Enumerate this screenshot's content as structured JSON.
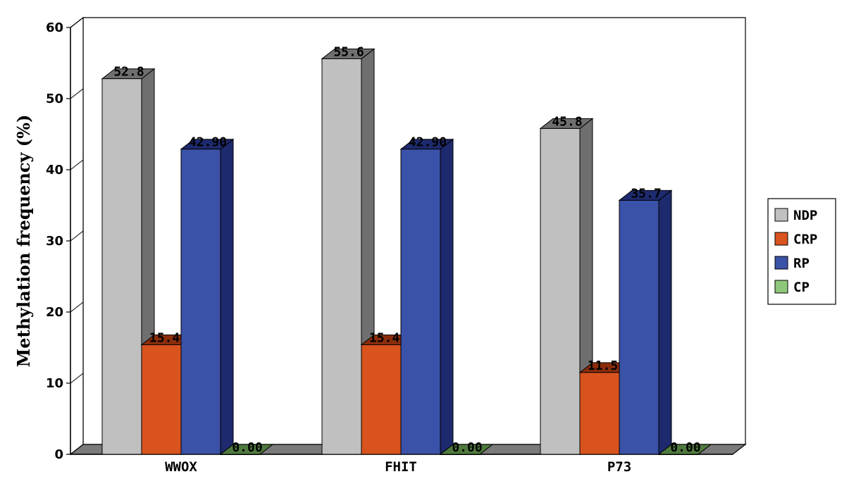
{
  "chart_data": {
    "type": "bar",
    "title": "",
    "xlabel": "",
    "ylabel": "Methylation frequency (%)",
    "ylim": [
      0,
      60
    ],
    "yticks": [
      0,
      10,
      20,
      30,
      40,
      50,
      60
    ],
    "categories": [
      "WWOX",
      "FHIT",
      "P73"
    ],
    "series": [
      {
        "name": "NDP",
        "values": [
          52.8,
          55.6,
          45.8
        ],
        "labels": [
          "52.8",
          "55.6",
          "45.8"
        ],
        "color": "#c0c0c0",
        "side_color": "#6f6f6f"
      },
      {
        "name": "CRP",
        "values": [
          15.4,
          15.4,
          11.5
        ],
        "labels": [
          "15.40",
          "15.40",
          "11.50"
        ],
        "color": "#d9531e",
        "side_color": "#8a2d0c"
      },
      {
        "name": "RP",
        "values": [
          42.9,
          42.9,
          35.7
        ],
        "labels": [
          "42.90",
          "42.90",
          "35.7"
        ],
        "color": "#3a52a8",
        "side_color": "#1e2a6e"
      },
      {
        "name": "CP",
        "values": [
          0.0,
          0.0,
          0.0
        ],
        "labels": [
          "0.00",
          "0.00",
          "0.00"
        ],
        "color": "#8fc77a",
        "side_color": "#4f7a3e"
      }
    ],
    "grid": false,
    "legend": "right",
    "style": "3d"
  }
}
